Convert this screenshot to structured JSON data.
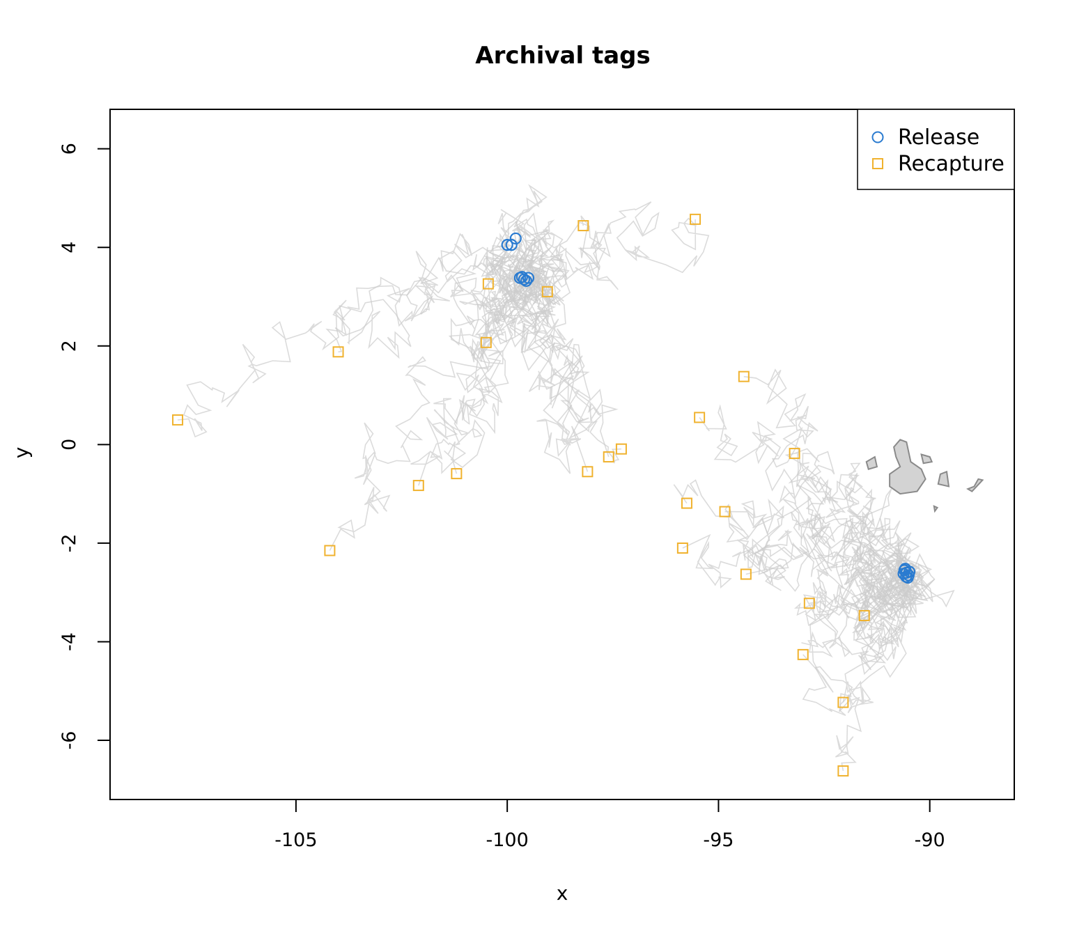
{
  "chart_data": {
    "type": "scatter",
    "title": "Archival tags",
    "xlabel": "x",
    "ylabel": "y",
    "xlim": [
      -109.4,
      -88.0
    ],
    "ylim": [
      -7.2,
      6.8
    ],
    "x_ticks": [
      -105,
      -100,
      -95,
      -90
    ],
    "y_ticks": [
      -6,
      -4,
      -2,
      0,
      2,
      4,
      6
    ],
    "x_tick_labels": [
      "-105",
      "-100",
      "-95",
      "-90"
    ],
    "y_tick_labels": [
      "-6",
      "-4",
      "-2",
      "0",
      "2",
      "4",
      "6"
    ],
    "grid": false,
    "legend_position": "top-right",
    "legend": [
      {
        "label": "Release",
        "marker": "circle",
        "color": "#2a7bd0"
      },
      {
        "label": "Recapture",
        "marker": "square",
        "color": "#f0b22e"
      }
    ],
    "track_color": "#cccccc",
    "land_fill": "#d3d3d3",
    "land_stroke": "#8a8a8a",
    "series": [
      {
        "name": "Release",
        "marker": "circle",
        "color": "#2a7bd0",
        "points": [
          [
            -99.8,
            4.18
          ],
          [
            -99.9,
            4.05
          ],
          [
            -100.0,
            4.05
          ],
          [
            -99.7,
            3.38
          ],
          [
            -99.6,
            3.35
          ],
          [
            -99.5,
            3.38
          ],
          [
            -99.55,
            3.32
          ],
          [
            -99.65,
            3.4
          ],
          [
            -90.6,
            -2.55
          ],
          [
            -90.55,
            -2.6
          ],
          [
            -90.5,
            -2.65
          ],
          [
            -90.58,
            -2.52
          ],
          [
            -90.62,
            -2.62
          ],
          [
            -90.52,
            -2.7
          ],
          [
            -90.48,
            -2.58
          ],
          [
            -90.56,
            -2.68
          ]
        ]
      },
      {
        "name": "Recapture",
        "marker": "square",
        "color": "#f0b22e",
        "points": [
          [
            -107.8,
            0.5
          ],
          [
            -104.0,
            1.88
          ],
          [
            -104.2,
            -2.15
          ],
          [
            -102.1,
            -0.83
          ],
          [
            -101.2,
            -0.59
          ],
          [
            -100.5,
            2.07
          ],
          [
            -100.45,
            3.26
          ],
          [
            -99.05,
            3.1
          ],
          [
            -98.2,
            4.44
          ],
          [
            -98.1,
            -0.55
          ],
          [
            -97.6,
            -0.25
          ],
          [
            -97.3,
            -0.09
          ],
          [
            -95.55,
            4.57
          ],
          [
            -95.45,
            0.55
          ],
          [
            -95.75,
            -1.19
          ],
          [
            -95.85,
            -2.1
          ],
          [
            -94.85,
            -1.36
          ],
          [
            -94.4,
            1.38
          ],
          [
            -94.35,
            -2.63
          ],
          [
            -93.2,
            -0.18
          ],
          [
            -92.85,
            -3.22
          ],
          [
            -93.0,
            -4.26
          ],
          [
            -91.55,
            -3.47
          ],
          [
            -92.05,
            -5.23
          ],
          [
            -92.05,
            -6.62
          ]
        ]
      }
    ]
  }
}
